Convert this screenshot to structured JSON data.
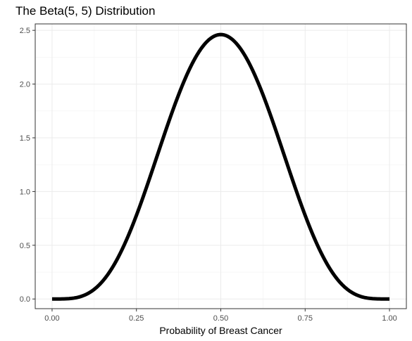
{
  "chart_data": {
    "type": "line",
    "title": "The Beta(5, 5) Distribution",
    "xlabel": "Probability of Breast Cancer",
    "ylabel": "",
    "xlim": [
      -0.05,
      1.05
    ],
    "ylim": [
      -0.09,
      2.56
    ],
    "x_ticks": [
      "0.00",
      "0.25",
      "0.50",
      "0.75",
      "1.00"
    ],
    "y_ticks": [
      "0.0",
      "0.5",
      "1.0",
      "1.5",
      "2.0",
      "2.5"
    ],
    "grid": true,
    "legend": "none",
    "line_color": "#000000",
    "series": [
      {
        "x": [
          0.0,
          0.05,
          0.1,
          0.15,
          0.2,
          0.25,
          0.3,
          0.35,
          0.4,
          0.45,
          0.5,
          0.55,
          0.6,
          0.65,
          0.7,
          0.75,
          0.8,
          0.85,
          0.9,
          0.95,
          1.0
        ],
        "y": [
          0.0,
          0.002,
          0.033,
          0.148,
          0.369,
          0.712,
          1.144,
          1.581,
          1.99,
          2.299,
          2.461,
          2.299,
          1.99,
          1.581,
          1.144,
          0.712,
          0.369,
          0.148,
          0.033,
          0.002,
          0.0
        ]
      }
    ]
  }
}
